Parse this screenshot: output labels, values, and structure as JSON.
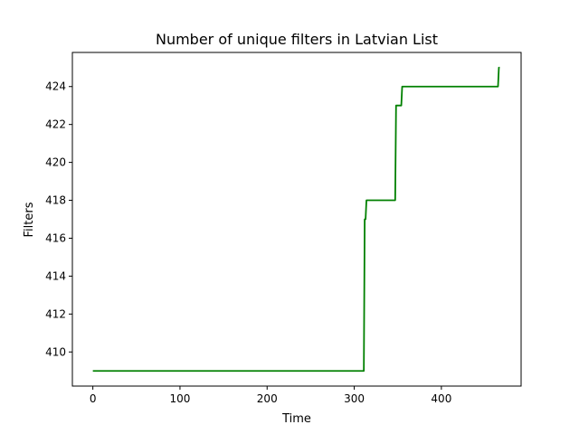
{
  "chart_data": {
    "type": "line",
    "title": "Number of unique filters in Latvian List",
    "xlabel": "Time",
    "ylabel": "Filters",
    "xlim": [
      -23.5,
      491.5
    ],
    "ylim": [
      408.2,
      425.8
    ],
    "xticks": [
      0,
      100,
      200,
      300,
      400
    ],
    "yticks": [
      410,
      412,
      414,
      416,
      418,
      420,
      422,
      424
    ],
    "grid": false,
    "series": [
      {
        "color": "#008000",
        "x": [
          0,
          311,
          312,
          313,
          314,
          315,
          347,
          348,
          349,
          354,
          355,
          465,
          466,
          467
        ],
        "y": [
          409,
          409,
          417,
          417,
          418,
          418,
          418,
          423,
          423,
          423,
          424,
          424,
          425,
          425
        ]
      }
    ]
  }
}
